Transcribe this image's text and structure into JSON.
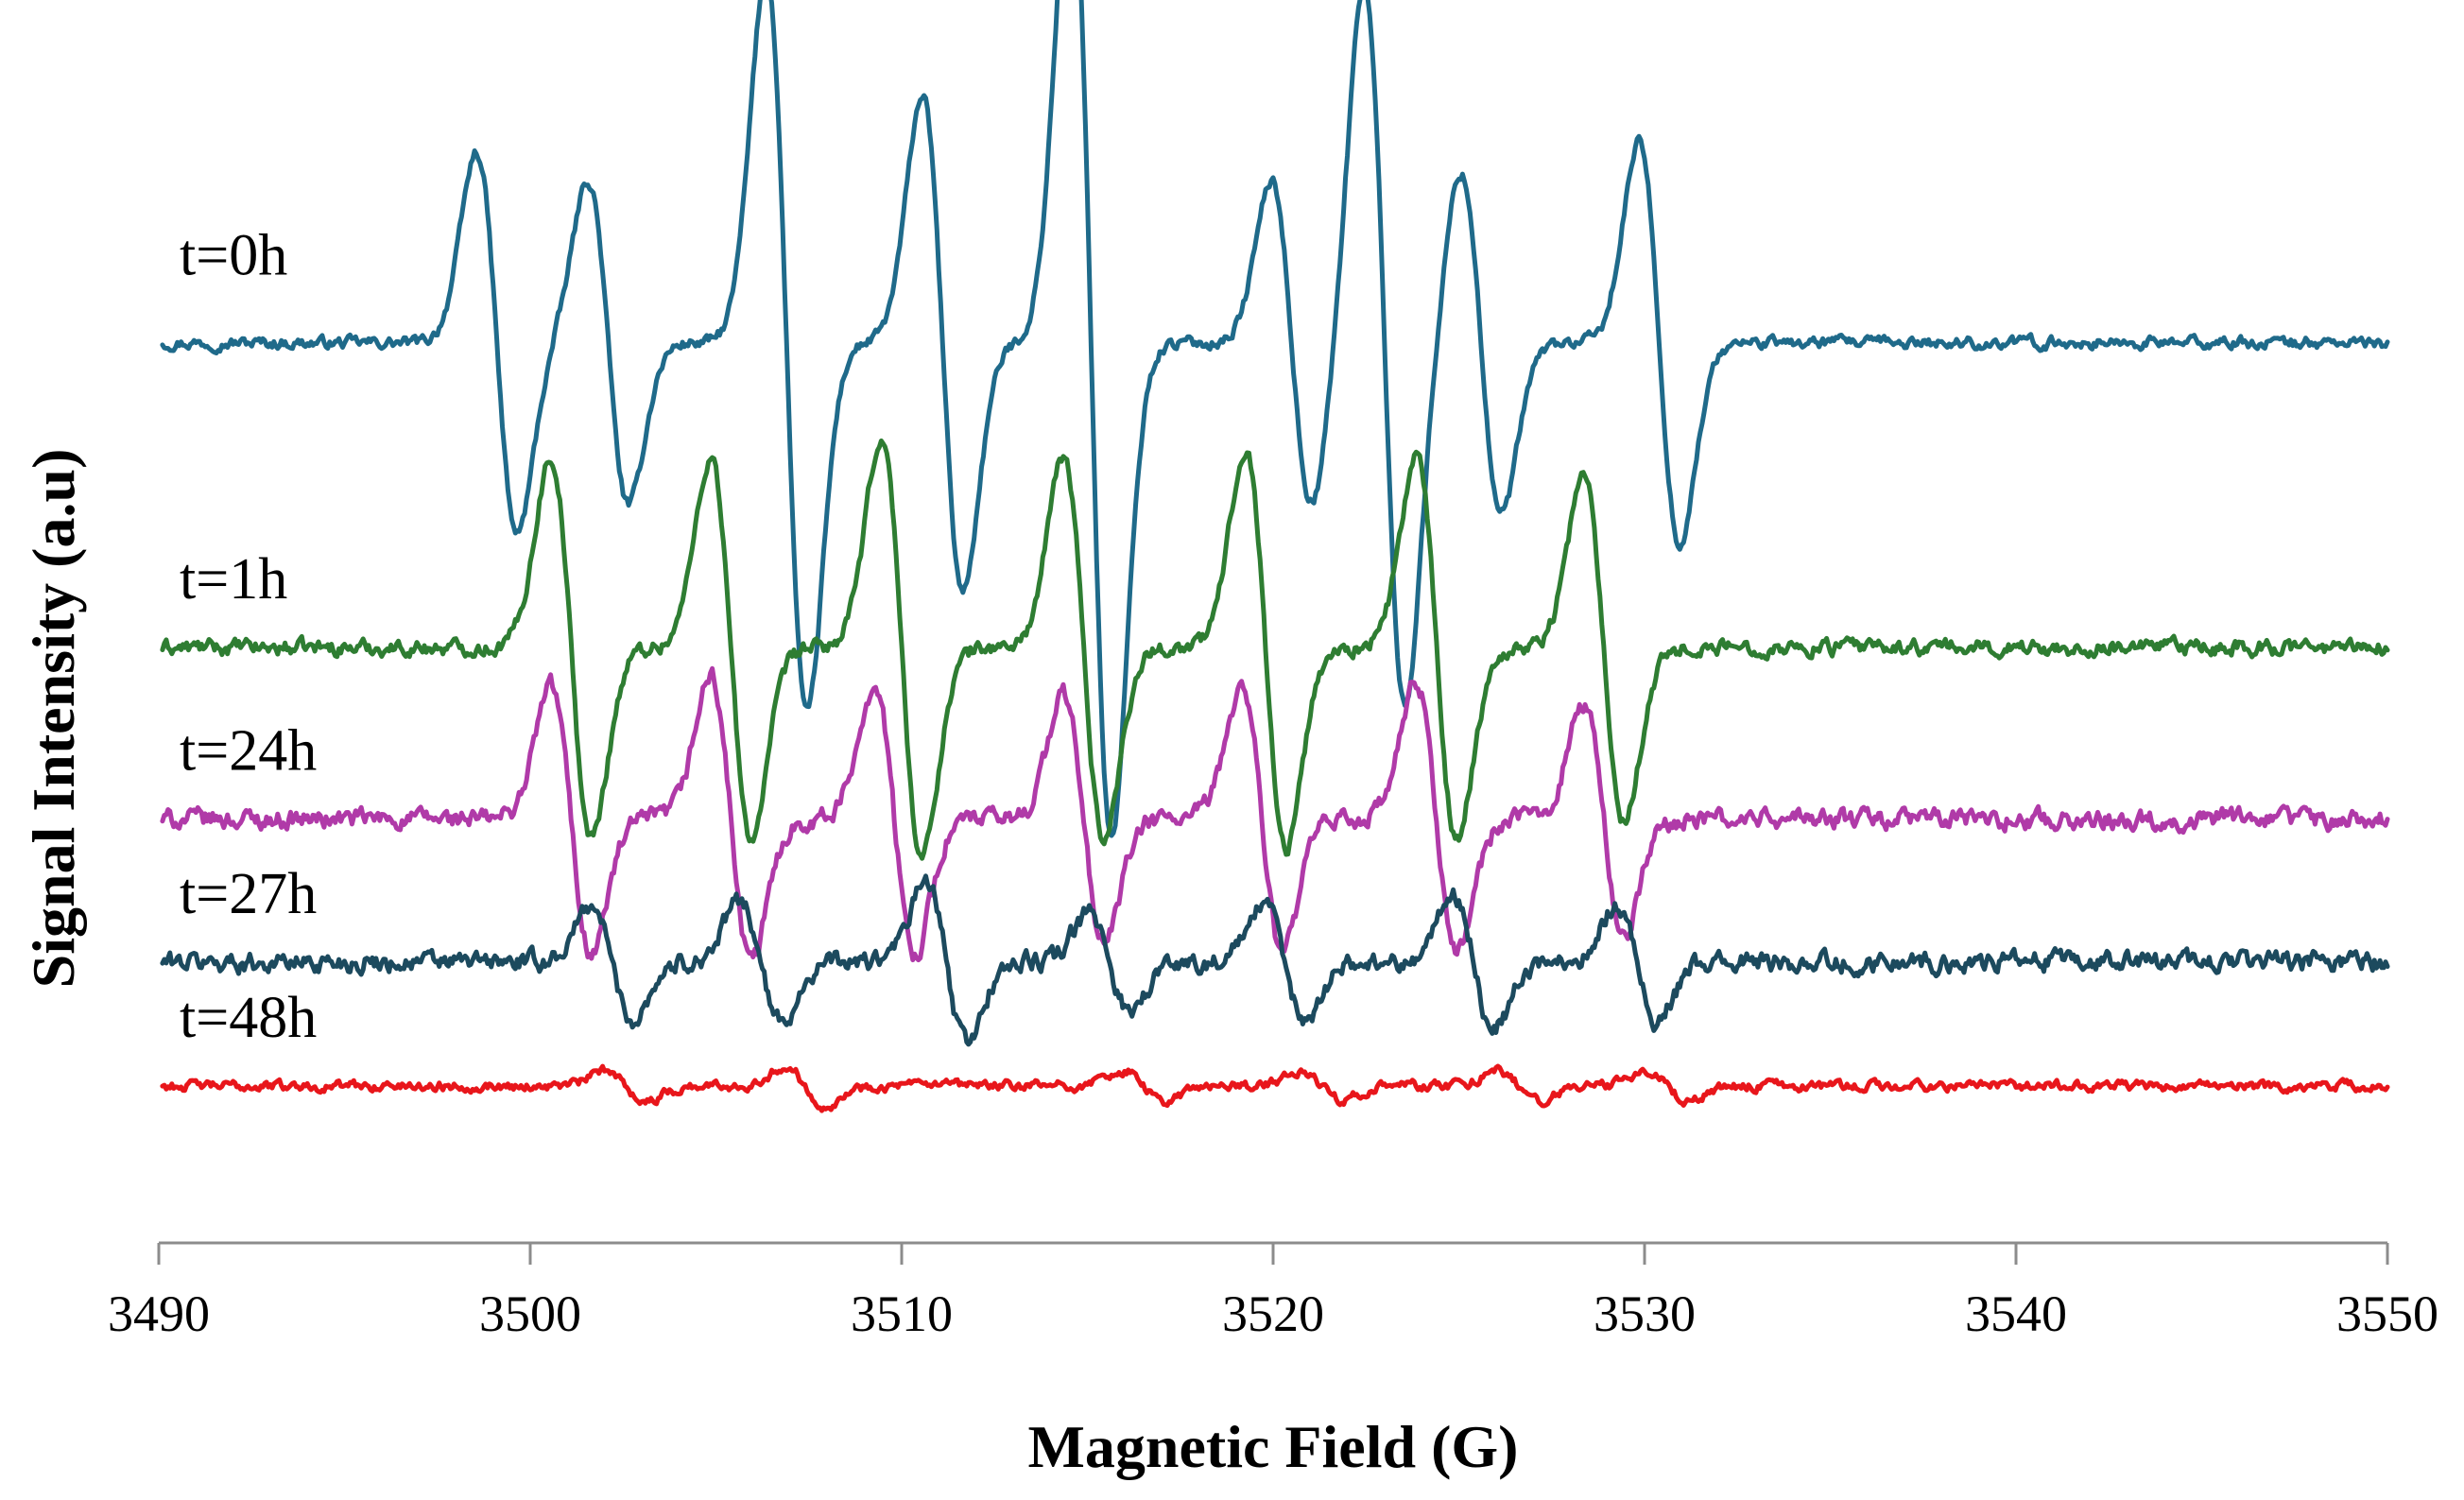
{
  "chart_data": {
    "type": "line",
    "title": "",
    "xlabel": "Magnetic Field (G)",
    "ylabel": "Signal Intensity (a.u)",
    "xlim": [
      3490,
      3550
    ],
    "x_ticks": [
      3490,
      3500,
      3510,
      3520,
      3530,
      3540,
      3550
    ],
    "x_tick_labels": [
      "3490",
      "3500",
      "3510",
      "3520",
      "3530",
      "3540",
      "3550"
    ],
    "y_axis_visible": false,
    "grid": false,
    "legend": "inline-left",
    "series": [
      {
        "name": "t=0h",
        "label": "t=0h",
        "color": "#1f6a8a",
        "baseline": 0.0,
        "scale": 1.0,
        "noise": 0.03,
        "lines": [
          {
            "center": 3499.1,
            "amp": 1.0
          },
          {
            "center": 3502.1,
            "amp": 0.85
          },
          {
            "center": 3506.9,
            "amp": 1.95
          },
          {
            "center": 3511.1,
            "amp": 1.3
          },
          {
            "center": 3515.1,
            "amp": 2.6
          },
          {
            "center": 3520.5,
            "amp": 0.85
          },
          {
            "center": 3523.0,
            "amp": 1.9
          },
          {
            "center": 3525.6,
            "amp": 0.9
          },
          {
            "center": 3530.4,
            "amp": 1.05
          }
        ]
      },
      {
        "name": "t=1h",
        "label": "t=1h",
        "color": "#2e7d32",
        "baseline": -1.6,
        "scale": 1.0,
        "noise": 0.04,
        "lines": [
          {
            "center": 3501.1,
            "amp": 1.0
          },
          {
            "center": 3505.4,
            "amp": 1.0
          },
          {
            "center": 3510.0,
            "amp": 1.1
          },
          {
            "center": 3514.9,
            "amp": 1.0
          },
          {
            "center": 3519.8,
            "amp": 1.05
          },
          {
            "center": 3524.4,
            "amp": 1.0
          },
          {
            "center": 3528.9,
            "amp": 0.9
          }
        ]
      },
      {
        "name": "t=24h",
        "label": "t=24h",
        "color": "#b03aa8",
        "baseline": -2.5,
        "scale": 1.0,
        "noise": 0.05,
        "lines": [
          {
            "center": 3501.1,
            "amp": 0.7
          },
          {
            "center": 3505.4,
            "amp": 0.75
          },
          {
            "center": 3509.8,
            "amp": 0.7
          },
          {
            "center": 3514.9,
            "amp": 0.65
          },
          {
            "center": 3519.7,
            "amp": 0.7
          },
          {
            "center": 3524.4,
            "amp": 0.7
          },
          {
            "center": 3528.9,
            "amp": 0.6
          }
        ]
      },
      {
        "name": "t=27h",
        "label": "t=27h",
        "color": "#1c4a5e",
        "baseline": -3.25,
        "scale": 1.0,
        "noise": 0.05,
        "lines": [
          {
            "center": 3502.2,
            "amp": 0.3
          },
          {
            "center": 3506.2,
            "amp": 0.32
          },
          {
            "center": 3511.2,
            "amp": 0.42
          },
          {
            "center": 3515.6,
            "amp": 0.25
          },
          {
            "center": 3520.3,
            "amp": 0.3
          },
          {
            "center": 3525.4,
            "amp": 0.35
          },
          {
            "center": 3529.8,
            "amp": 0.3
          }
        ]
      },
      {
        "name": "t=48h",
        "label": "t=48h",
        "color": "#e8161b",
        "baseline": -3.9,
        "scale": 1.0,
        "noise": 0.025,
        "lines": [
          {
            "center": 3502.6,
            "amp": 0.08
          },
          {
            "center": 3507.4,
            "amp": 0.1
          },
          {
            "center": 3516.5,
            "amp": 0.08
          },
          {
            "center": 3521.3,
            "amp": 0.07
          },
          {
            "center": 3526.6,
            "amp": 0.08
          },
          {
            "center": 3530.6,
            "amp": 0.07
          }
        ]
      }
    ],
    "ylim": [
      -4.6,
      1.7
    ]
  }
}
